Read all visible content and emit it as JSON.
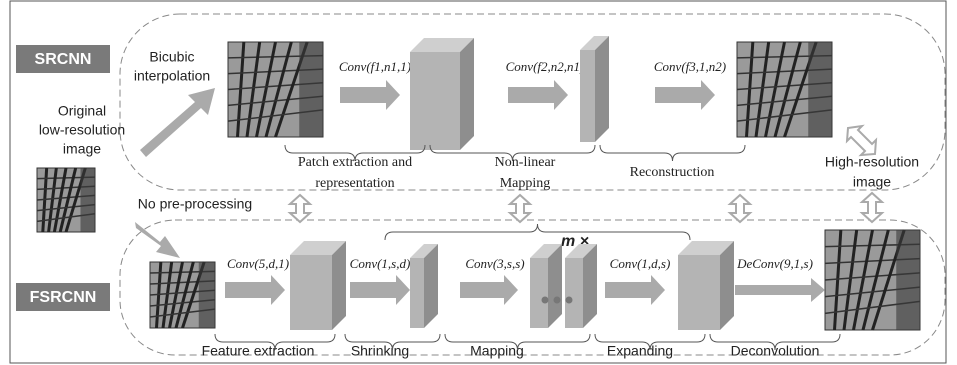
{
  "srcnn": {
    "label": "SRCNN",
    "input": [
      "Original",
      "low-resolution",
      "image"
    ],
    "bicubic": [
      "Bicubic",
      "interpolation"
    ],
    "ops": [
      "Conv(f1,n1,1)",
      "Conv(f2,n2,n1)",
      "Conv(f3,1,n2)"
    ],
    "stages": [
      [
        "Patch extraction and",
        "representation"
      ],
      [
        "Non-linear",
        "Mapping"
      ],
      [
        "Reconstruction"
      ]
    ]
  },
  "output": [
    "High-resolution",
    "image"
  ],
  "fsrcnn": {
    "label": "FSRCNN",
    "no_pre": "No pre-processing",
    "ops": [
      "Conv(5,d,1)",
      "Conv(1,s,d)",
      "Conv(3,s,s)",
      "Conv(1,d,s)",
      "DeConv(9,1,s)"
    ],
    "repeat": "m ×",
    "stages": [
      "Feature extraction",
      "Shrinking",
      "Mapping",
      "Expanding",
      "Deconvolution"
    ]
  }
}
